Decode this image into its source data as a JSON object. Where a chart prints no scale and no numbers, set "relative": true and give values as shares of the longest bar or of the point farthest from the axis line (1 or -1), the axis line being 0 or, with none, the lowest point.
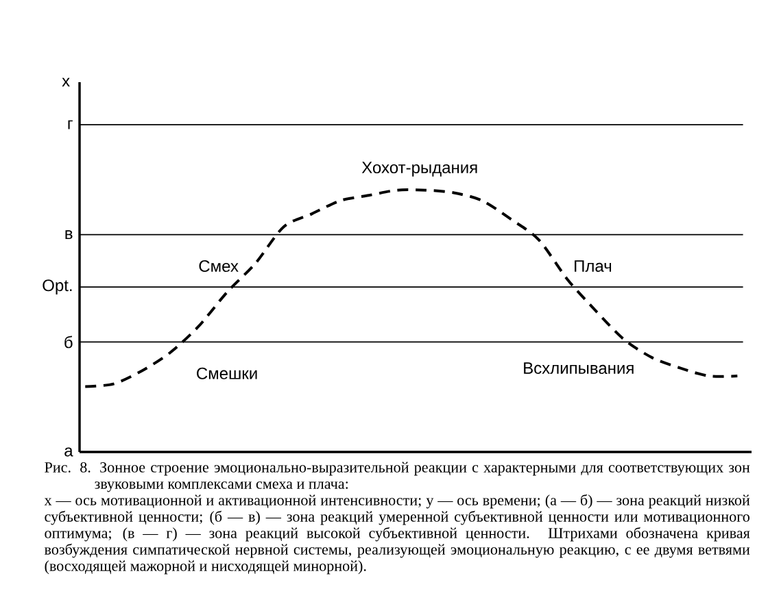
{
  "chart_data": {
    "type": "line",
    "relative": true,
    "categories": [
      null,
      null,
      null,
      null,
      null,
      null,
      null,
      null,
      null,
      null,
      null,
      null,
      null,
      null,
      null,
      null,
      null,
      null,
      null,
      null,
      null,
      null,
      null,
      null
    ],
    "series": [
      {
        "color": "#000000",
        "line_style": "dashed",
        "values": [
          0.25,
          0.26,
          0.31,
          0.38,
          0.48,
          0.61,
          0.72,
          0.86,
          0.91,
          0.96,
          0.98,
          1.0,
          1.0,
          0.99,
          0.96,
          0.89,
          0.81,
          0.66,
          0.54,
          0.43,
          0.36,
          0.32,
          0.29,
          0.29
        ]
      }
    ],
    "ref_lines": [
      {
        "axis": "y",
        "value": 0,
        "label": "а"
      },
      {
        "axis": "y",
        "value": 0.42,
        "label": "б"
      },
      {
        "axis": "y",
        "value": 0.63,
        "label": "Opt."
      },
      {
        "axis": "y",
        "value": 0.83,
        "label": "в"
      },
      {
        "axis": "y",
        "value": 1.25,
        "label": "г"
      }
    ],
    "annotations": [
      "Хохот-рыдания",
      "Смех",
      "Плач",
      "Смешки",
      "Всхлипывания",
      "x",
      "Рис. 8. Зонное строение эмоционально-выразительной реакции с характерными для соответствующих зон звуковыми комплексами смеха и плача:",
      "х — ось мотивационной и активационной интенсивности; у — ось времени; (а — б) — зона реакций низкой субъективной ценности; (б — в) — зона реакций умеренной субъективной ценности или мотивационного оптимума; (в — г) — зона реакций высокой субъективной ценности. Штрихами обозначена кривая возбуждения симпатической нервной системы, реализующей эмоциональную реакцию, с ее двумя ветвями (восходящей мажорной и нисходящей минорной)."
    ]
  }
}
